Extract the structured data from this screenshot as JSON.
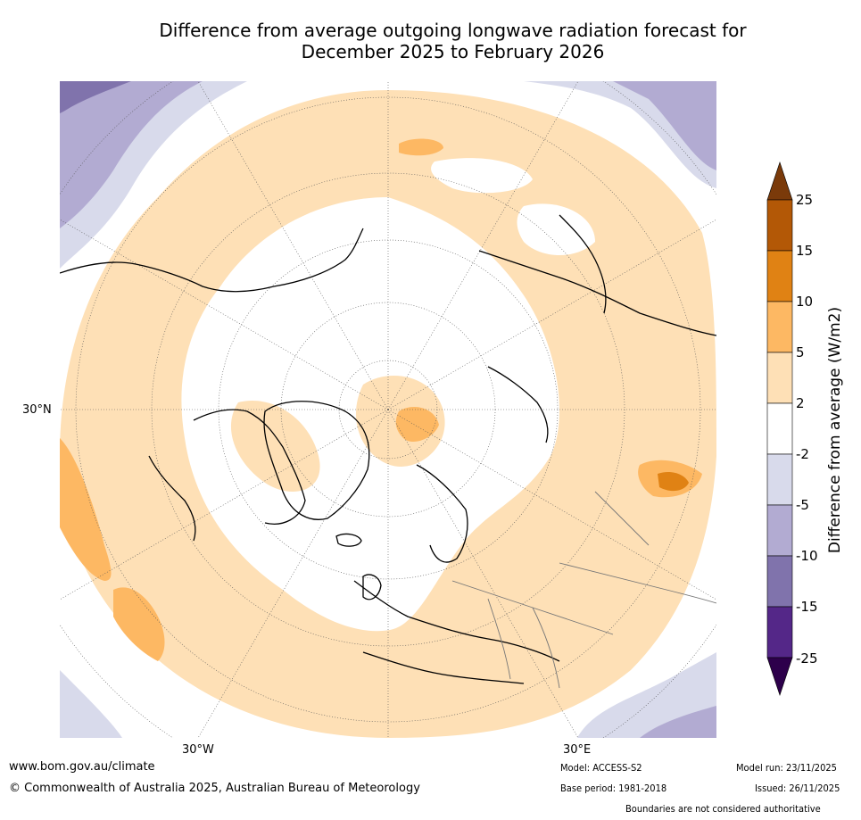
{
  "title": {
    "line1": "Difference from average outgoing longwave radiation forecast for",
    "line2": "December 2025 to February 2026"
  },
  "map": {
    "projection": "north-polar-stereographic",
    "lat_label": "30°N",
    "lon_labels": [
      "30°W",
      "30°E"
    ]
  },
  "colorbar": {
    "title": "Difference from average (W/m2)",
    "tick_labels": [
      "25",
      "15",
      "10",
      "5",
      "2",
      "-2",
      "-5",
      "-10",
      "-15",
      "-25"
    ],
    "colors": {
      "above_25": "#7a3a0a",
      "15_25": "#b35806",
      "10_15": "#e08214",
      "5_10": "#fdb863",
      "2_5": "#fee0b6",
      "neutral": "#ffffff",
      "m5_m2": "#d8daeb",
      "m10_m5": "#b2abd2",
      "m15_m10": "#8073ac",
      "m25_m15": "#542788",
      "below_m25": "#2d004b"
    }
  },
  "footer": {
    "website": "www.bom.gov.au/climate",
    "copyright": "© Commonwealth of Australia 2025, Australian Bureau of Meteorology",
    "model": "Model: ACCESS-S2",
    "base_period": "Base period: 1981-2018",
    "model_run": "Model run: 23/11/2025",
    "issued": "Issued: 26/11/2025",
    "disclaimer": "Boundaries are not considered authoritative"
  }
}
